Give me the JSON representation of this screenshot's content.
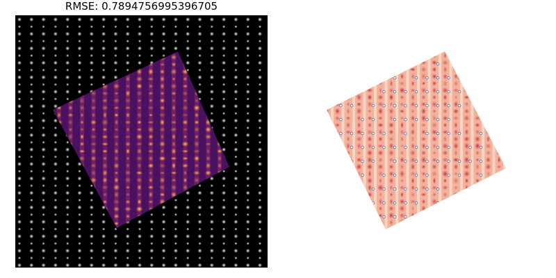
{
  "title": "RMSE: 0.7894756995396705",
  "left_image": {
    "description_colors": {
      "background": "#000000",
      "dots": "#ffffff",
      "overlay_dark": "#3a0a4d",
      "overlay_mid": "#9b2b6a",
      "overlay_hot": "#f6a33a"
    }
  },
  "right_image": {
    "description_colors": {
      "base": "#f3b9a3",
      "deep": "#c9222b",
      "light": "#fbe7db",
      "marker": "#5b6aa8"
    }
  }
}
